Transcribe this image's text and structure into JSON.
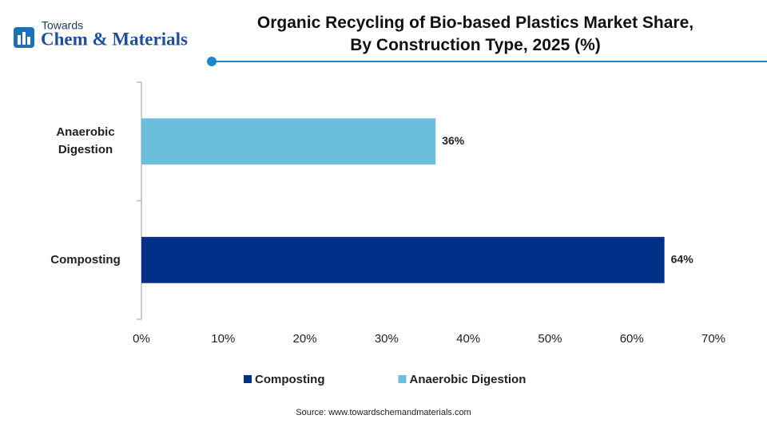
{
  "logo": {
    "top": "Towards",
    "main": "Chem & Materials"
  },
  "chart_data": {
    "type": "hbar",
    "title": [
      "Organic Recycling of Bio-based Plastics Market Share,",
      "By Construction Type, 2025 (%)"
    ],
    "categories": [
      "Anaerobic Digestion",
      "Composting"
    ],
    "series": [
      {
        "name": "Composting",
        "color": "#003087",
        "values": [
          null,
          64
        ],
        "value_labels": [
          null,
          "64%"
        ]
      },
      {
        "name": "Anaerobic Digestion",
        "color": "#6bbfdc",
        "values": [
          36,
          null
        ],
        "value_labels": [
          "36%",
          null
        ]
      }
    ],
    "xlim": [
      0,
      70
    ],
    "xticks": [
      {
        "value": 0,
        "label": "0%"
      },
      {
        "value": 10,
        "label": "10%"
      },
      {
        "value": 20,
        "label": "20%"
      },
      {
        "value": 30,
        "label": "30%"
      },
      {
        "value": 40,
        "label": "40%"
      },
      {
        "value": 50,
        "label": "50%"
      },
      {
        "value": 60,
        "label": "60%"
      },
      {
        "value": 70,
        "label": "70%"
      }
    ],
    "grid": false,
    "legend": "bottom",
    "source": "Source: www.towardschemandmaterials.com"
  }
}
